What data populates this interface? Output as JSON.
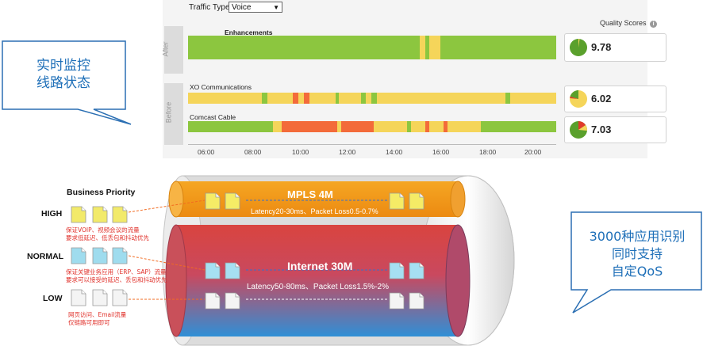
{
  "callouts": {
    "left": [
      "实时监控",
      "线路状态"
    ],
    "right": [
      "3000种应用识别",
      "同时支持",
      "自定QoS"
    ]
  },
  "dashboard": {
    "traffic_type_label": "Traffic Type:",
    "traffic_type_value": "Voice",
    "quality_scores_label": "Quality Scores",
    "after_label": "After",
    "before_label": "Before",
    "rows": [
      {
        "name": "Enhancements",
        "score": "9.78"
      },
      {
        "name": "XO Communications",
        "score": "6.02"
      },
      {
        "name": "Comcast Cable",
        "score": "7.03"
      }
    ],
    "time_ticks": [
      "06:00",
      "08:00",
      "10:00",
      "12:00",
      "14:00",
      "16:00",
      "18:00",
      "20:00"
    ],
    "colors": {
      "good": "#8cc63f",
      "fair": "#f5d55a",
      "poor": "#f36b3a"
    }
  },
  "diagram": {
    "title": "Business Priority",
    "levels": [
      {
        "label": "HIGH",
        "note": [
          "保证VOIP、视频会议的流量",
          "要求低延迟、低丢包和抖动优先"
        ]
      },
      {
        "label": "NORMAL",
        "note": [
          "保证关键业务应用（ERP、SAP）流量",
          "要求可以接受的延迟、丢包和抖动优先"
        ]
      },
      {
        "label": "LOW",
        "note": [
          "网页访问、Email流量",
          "仅链路可用即可"
        ]
      }
    ],
    "pipes": [
      {
        "name": "MPLS 4M",
        "desc": "Latency20-30ms、Packet Loss0.5-0.7%"
      },
      {
        "name": "Internet 30M",
        "desc": "Latency50-80ms、Packet Loss1.5%-2%"
      }
    ]
  }
}
